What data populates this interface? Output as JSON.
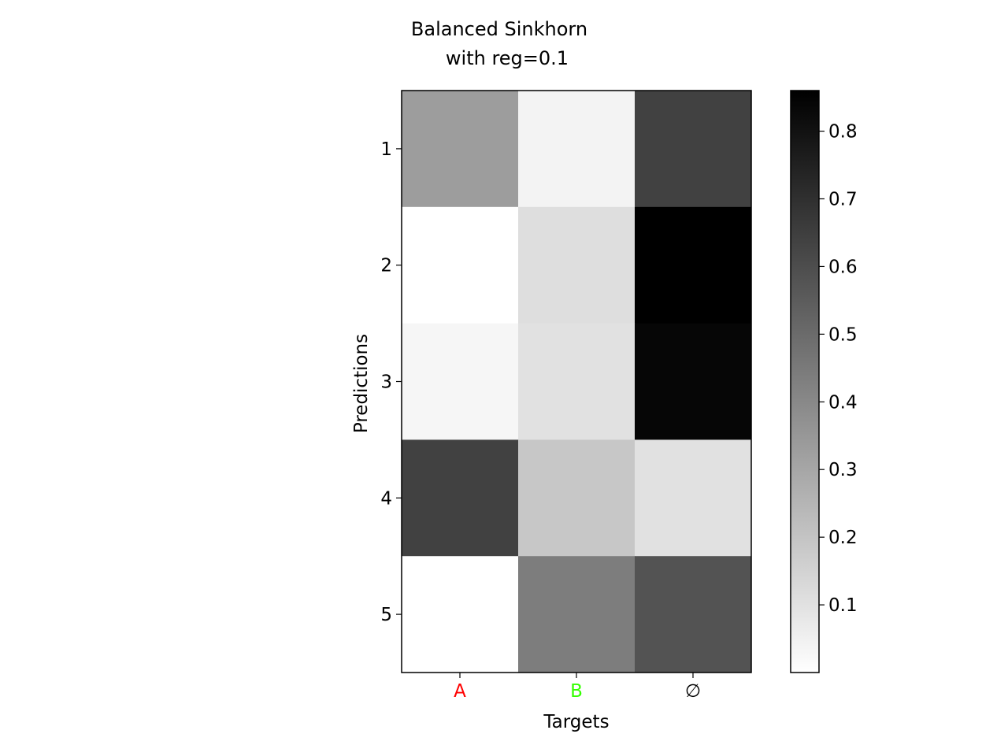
{
  "chart_data": {
    "type": "heatmap",
    "title": "Balanced Sinkhorn\nwith reg=0.1",
    "title_lines": [
      "Balanced Sinkhorn",
      "with reg=0.1"
    ],
    "xlabel": "Targets",
    "ylabel": "Predictions",
    "x_categories": [
      "A",
      "B",
      "∅"
    ],
    "x_category_colors": [
      "#ff0000",
      "#33ff00",
      "#000000"
    ],
    "y_categories": [
      "1",
      "2",
      "3",
      "4",
      "5"
    ],
    "values": [
      [
        0.33,
        0.04,
        0.64
      ],
      [
        0.0,
        0.11,
        0.86
      ],
      [
        0.03,
        0.1,
        0.84
      ],
      [
        0.64,
        0.19,
        0.1
      ],
      [
        0.0,
        0.44,
        0.58
      ]
    ],
    "colormap": "gray_r",
    "color_range": [
      0.0,
      0.86
    ],
    "colorbar": {
      "ticks": [
        0.1,
        0.2,
        0.3,
        0.4,
        0.5,
        0.6,
        0.7,
        0.8
      ],
      "tick_labels": [
        "0.1",
        "0.2",
        "0.3",
        "0.4",
        "0.5",
        "0.6",
        "0.7",
        "0.8"
      ],
      "placement": "right"
    },
    "grid": false,
    "legend": "none"
  }
}
